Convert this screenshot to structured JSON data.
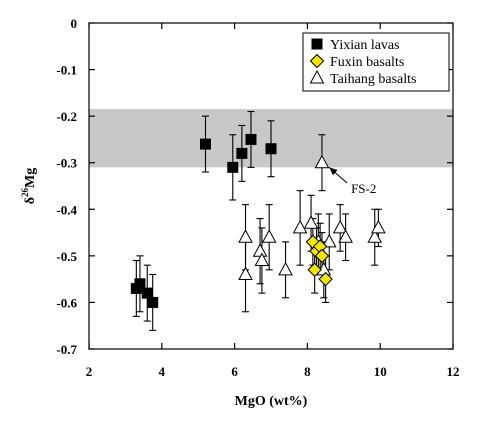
{
  "chart_data": {
    "type": "scatter",
    "xlabel": "MgO (wt%)",
    "ylabel_main": "δ",
    "ylabel_sup": "26",
    "ylabel_tail": "Mg",
    "xlim": [
      2,
      12
    ],
    "ylim": [
      -0.7,
      0
    ],
    "x_ticks": [
      2,
      4,
      6,
      8,
      10,
      12
    ],
    "y_ticks": [
      0,
      -0.1,
      -0.2,
      -0.3,
      -0.4,
      -0.5,
      -0.6,
      -0.7
    ],
    "x_tick_labels": [
      "2",
      "4",
      "6",
      "8",
      "10",
      "12"
    ],
    "y_tick_labels": [
      "0",
      "-0.1",
      "-0.2",
      "-0.3",
      "-0.4",
      "-0.5",
      "-0.6",
      "-0.7"
    ],
    "grid": false,
    "legend_position": "top-right",
    "band": {
      "y_min": -0.31,
      "y_max": -0.185,
      "color": "#c8c8c8"
    },
    "series": [
      {
        "name": "Yixian lavas",
        "marker": "square",
        "fill": "#000000",
        "stroke": "#000000",
        "points": [
          {
            "x": 5.2,
            "y": -0.26,
            "err": 0.06
          },
          {
            "x": 5.95,
            "y": -0.31,
            "err": 0.07
          },
          {
            "x": 6.2,
            "y": -0.28,
            "err": 0.06
          },
          {
            "x": 6.45,
            "y": -0.25,
            "err": 0.06
          },
          {
            "x": 7.0,
            "y": -0.27,
            "err": 0.06
          },
          {
            "x": 3.3,
            "y": -0.57,
            "err": 0.06
          },
          {
            "x": 3.4,
            "y": -0.56,
            "err": 0.06
          },
          {
            "x": 3.6,
            "y": -0.58,
            "err": 0.06
          },
          {
            "x": 3.75,
            "y": -0.6,
            "err": 0.06
          }
        ]
      },
      {
        "name": "Fuxin basalts",
        "marker": "diamond",
        "fill": "#f2e600",
        "stroke": "#000000",
        "points": [
          {
            "x": 8.15,
            "y": -0.47,
            "err": 0.05
          },
          {
            "x": 8.25,
            "y": -0.49,
            "err": 0.05
          },
          {
            "x": 8.35,
            "y": -0.48,
            "err": 0.05
          },
          {
            "x": 8.4,
            "y": -0.5,
            "err": 0.05
          },
          {
            "x": 8.2,
            "y": -0.53,
            "err": 0.05
          },
          {
            "x": 8.5,
            "y": -0.55,
            "err": 0.05
          }
        ]
      },
      {
        "name": "Taihang basalts",
        "marker": "triangle",
        "fill": "#ffffff",
        "stroke": "#000000",
        "points": [
          {
            "x": 8.4,
            "y": -0.3,
            "err": 0.06
          },
          {
            "x": 6.3,
            "y": -0.46,
            "err": 0.07
          },
          {
            "x": 6.3,
            "y": -0.54,
            "err": 0.08
          },
          {
            "x": 6.7,
            "y": -0.49,
            "err": 0.07
          },
          {
            "x": 6.75,
            "y": -0.51,
            "err": 0.07
          },
          {
            "x": 6.95,
            "y": -0.46,
            "err": 0.07
          },
          {
            "x": 7.4,
            "y": -0.53,
            "err": 0.06
          },
          {
            "x": 7.8,
            "y": -0.44,
            "err": 0.08
          },
          {
            "x": 8.1,
            "y": -0.43,
            "err": 0.06
          },
          {
            "x": 8.3,
            "y": -0.47,
            "err": 0.06
          },
          {
            "x": 8.45,
            "y": -0.53,
            "err": 0.06
          },
          {
            "x": 8.6,
            "y": -0.47,
            "err": 0.06
          },
          {
            "x": 8.9,
            "y": -0.44,
            "err": 0.05
          },
          {
            "x": 9.05,
            "y": -0.46,
            "err": 0.05
          },
          {
            "x": 9.85,
            "y": -0.46,
            "err": 0.06
          },
          {
            "x": 9.95,
            "y": -0.44,
            "err": 0.04
          }
        ]
      }
    ],
    "annotations": [
      {
        "text": "FS-2",
        "x": 9.2,
        "y": -0.365,
        "arrow_to_x": 8.6,
        "arrow_to_y": -0.31
      }
    ]
  }
}
